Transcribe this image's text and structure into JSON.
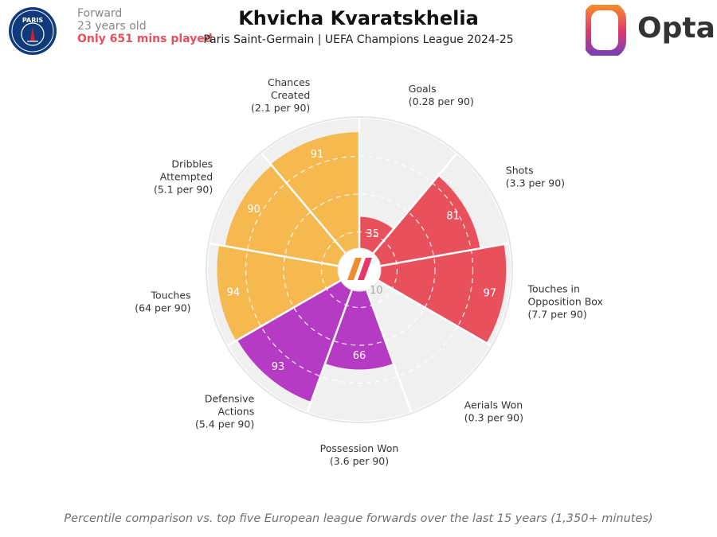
{
  "header": {
    "club_badge_text": "PARIS",
    "position": "Forward",
    "age": "23 years old",
    "minutes_note": "Only 651 mins played",
    "player_name": "Khvicha Kvaratskhelia",
    "subtitle": "Paris Saint-Germain | UEFA Champions League 2024-25",
    "brand": "Opta"
  },
  "footnote": "Percentile comparison vs. top five European league forwards over the last 15 years (1,350+ minutes)",
  "colors": {
    "attacking": "#e8505b",
    "possession": "#f6b94f",
    "defending": "#b63bc4",
    "track": "#f0f0f0",
    "grid": "#ffffff"
  },
  "chart_data": {
    "type": "polar-area",
    "value_range": [
      0,
      100
    ],
    "grid_rings": [
      25,
      50,
      75
    ],
    "metrics": [
      {
        "label": "Goals",
        "rate": "(0.28 per 90)",
        "percentile": 35,
        "group": "attacking"
      },
      {
        "label": "Shots",
        "rate": "(3.3 per 90)",
        "percentile": 81,
        "group": "attacking"
      },
      {
        "label": "Touches in Opposition Box",
        "rate": "(7.7 per 90)",
        "percentile": 97,
        "group": "attacking"
      },
      {
        "label": "Aerials Won",
        "rate": "(0.3 per 90)",
        "percentile": 10,
        "group": "defending"
      },
      {
        "label": "Possession Won",
        "rate": "(3.6 per 90)",
        "percentile": 66,
        "group": "defending"
      },
      {
        "label": "Defensive Actions",
        "rate": "(5.4 per 90)",
        "percentile": 93,
        "group": "defending"
      },
      {
        "label": "Touches",
        "rate": "(64 per 90)",
        "percentile": 94,
        "group": "possession"
      },
      {
        "label": "Dribbles Attempted",
        "rate": "(5.1 per 90)",
        "percentile": 90,
        "group": "possession"
      },
      {
        "label": "Chances Created",
        "rate": "(2.1 per 90)",
        "percentile": 91,
        "group": "possession"
      }
    ]
  }
}
